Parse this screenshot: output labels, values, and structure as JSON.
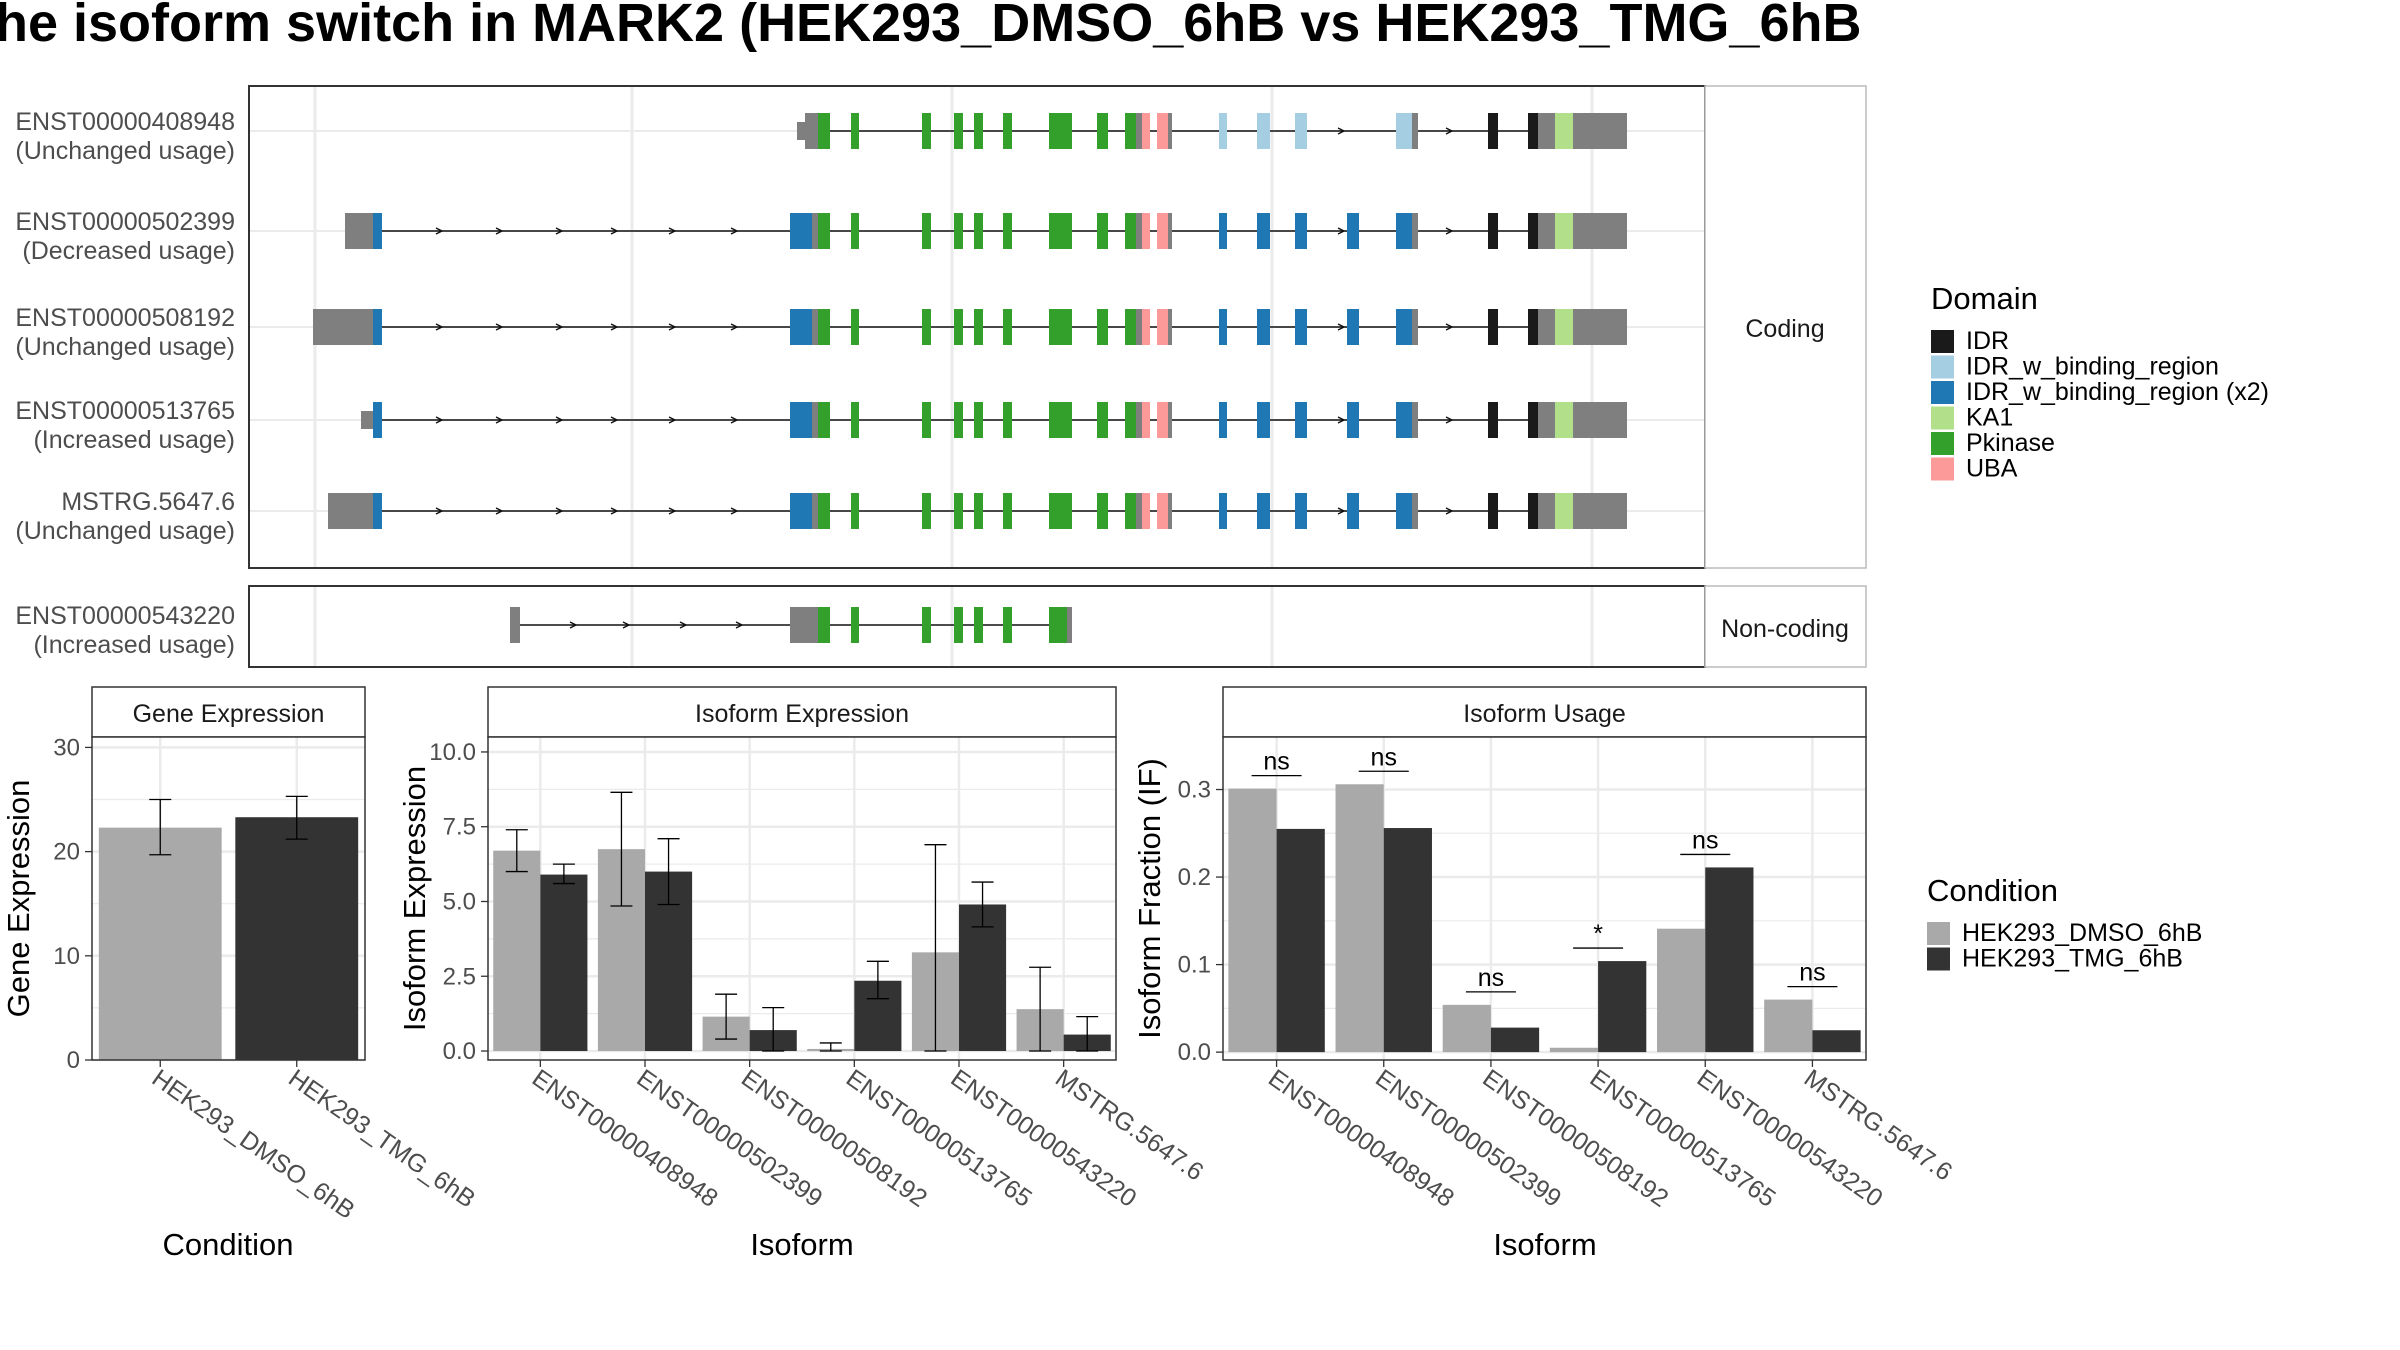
{
  "title": "he isoform switch in MARK2 (HEK293_DMSO_6hB vs HEK293_TMG_6hB",
  "colors": {
    "IDR": "#1a1a1a",
    "IDR_w_binding_region": "#a6cee3",
    "IDR_w_binding_region (x2)": "#1f78b4",
    "KA1": "#b2df8a",
    "Pkinase": "#33a02c",
    "UBA": "#fb9a99",
    "utr": "#7f7f7f",
    "dmso": "#a9a9a9",
    "tmg": "#333333"
  },
  "structure": {
    "facet_coding": "Coding",
    "facet_noncoding": "Non-coding",
    "transcripts": [
      {
        "id": "ENST00000408948",
        "usage": "(Unchanged usage)",
        "group": "coding"
      },
      {
        "id": "ENST00000502399",
        "usage": "(Decreased usage)",
        "group": "coding"
      },
      {
        "id": "ENST00000508192",
        "usage": "(Unchanged usage)",
        "group": "coding"
      },
      {
        "id": "ENST00000513765",
        "usage": "(Increased usage)",
        "group": "coding"
      },
      {
        "id": "MSTRG.5647.6",
        "usage": "(Unchanged usage)",
        "group": "coding"
      },
      {
        "id": "ENST00000543220",
        "usage": "(Increased usage)",
        "group": "noncoding"
      }
    ]
  },
  "legend_domain": {
    "title": "Domain",
    "items": [
      "IDR",
      "IDR_w_binding_region",
      "IDR_w_binding_region (x2)",
      "KA1",
      "Pkinase",
      "UBA"
    ]
  },
  "legend_condition": {
    "title": "Condition",
    "items": [
      "HEK293_DMSO_6hB",
      "HEK293_TMG_6hB"
    ]
  },
  "chart_data": [
    {
      "type": "bar",
      "title": "Gene Expression",
      "xlabel": "Condition",
      "ylabel": "Gene Expression",
      "ylim": [
        0,
        31
      ],
      "yticks": [
        0,
        10,
        20,
        30
      ],
      "categories": [
        "HEK293_DMSO_6hB",
        "HEK293_TMG_6hB"
      ],
      "values": [
        22.3,
        23.3
      ],
      "errors": [
        [
          19.7,
          25.0
        ],
        [
          21.2,
          25.3
        ]
      ],
      "grid": true
    },
    {
      "type": "bar",
      "title": "Isoform Expression",
      "xlabel": "Isoform",
      "ylabel": "Isoform Expression",
      "ylim": [
        -0.3,
        10.5
      ],
      "yticks": [
        0.0,
        2.5,
        5.0,
        7.5,
        10.0
      ],
      "ytick_labels": [
        "0.0",
        "2.5",
        "5.0",
        "7.5",
        "10.0"
      ],
      "categories": [
        "ENST00000408948",
        "ENST00000502399",
        "ENST00000508192",
        "ENST00000513765",
        "ENST00000543220",
        "MSTRG.5647.6"
      ],
      "series": [
        {
          "name": "HEK293_DMSO_6hB",
          "values": [
            6.7,
            6.75,
            1.15,
            0.07,
            3.3,
            1.4
          ],
          "errors": [
            [
              6.0,
              7.4
            ],
            [
              4.85,
              8.65
            ],
            [
              0.4,
              1.9
            ],
            [
              0.0,
              0.27
            ],
            [
              0.0,
              6.9
            ],
            [
              0.0,
              2.8
            ]
          ]
        },
        {
          "name": "HEK293_TMG_6hB",
          "values": [
            5.9,
            6.0,
            0.7,
            2.35,
            4.9,
            0.55
          ],
          "errors": [
            [
              5.6,
              6.25
            ],
            [
              4.9,
              7.1
            ],
            [
              0.0,
              1.45
            ],
            [
              1.75,
              3.0
            ],
            [
              4.15,
              5.65
            ],
            [
              0.0,
              1.15
            ]
          ]
        }
      ],
      "grid": true
    },
    {
      "type": "bar",
      "title": "Isoform Usage",
      "xlabel": "Isoform",
      "ylabel": "Isoform Fraction (IF)",
      "ylim": [
        -0.009,
        0.36
      ],
      "yticks": [
        0.0,
        0.1,
        0.2,
        0.3
      ],
      "ytick_labels": [
        "0.0",
        "0.1",
        "0.2",
        "0.3"
      ],
      "categories": [
        "ENST00000408948",
        "ENST00000502399",
        "ENST00000508192",
        "ENST00000513765",
        "ENST00000543220",
        "MSTRG.5647.6"
      ],
      "series": [
        {
          "name": "HEK293_DMSO_6hB",
          "values": [
            0.301,
            0.306,
            0.054,
            0.005,
            0.141,
            0.06
          ]
        },
        {
          "name": "HEK293_TMG_6hB",
          "values": [
            0.255,
            0.256,
            0.028,
            0.104,
            0.211,
            0.025
          ]
        }
      ],
      "significance": [
        "ns",
        "ns",
        "ns",
        "*",
        "ns",
        "ns"
      ],
      "grid": true
    }
  ]
}
